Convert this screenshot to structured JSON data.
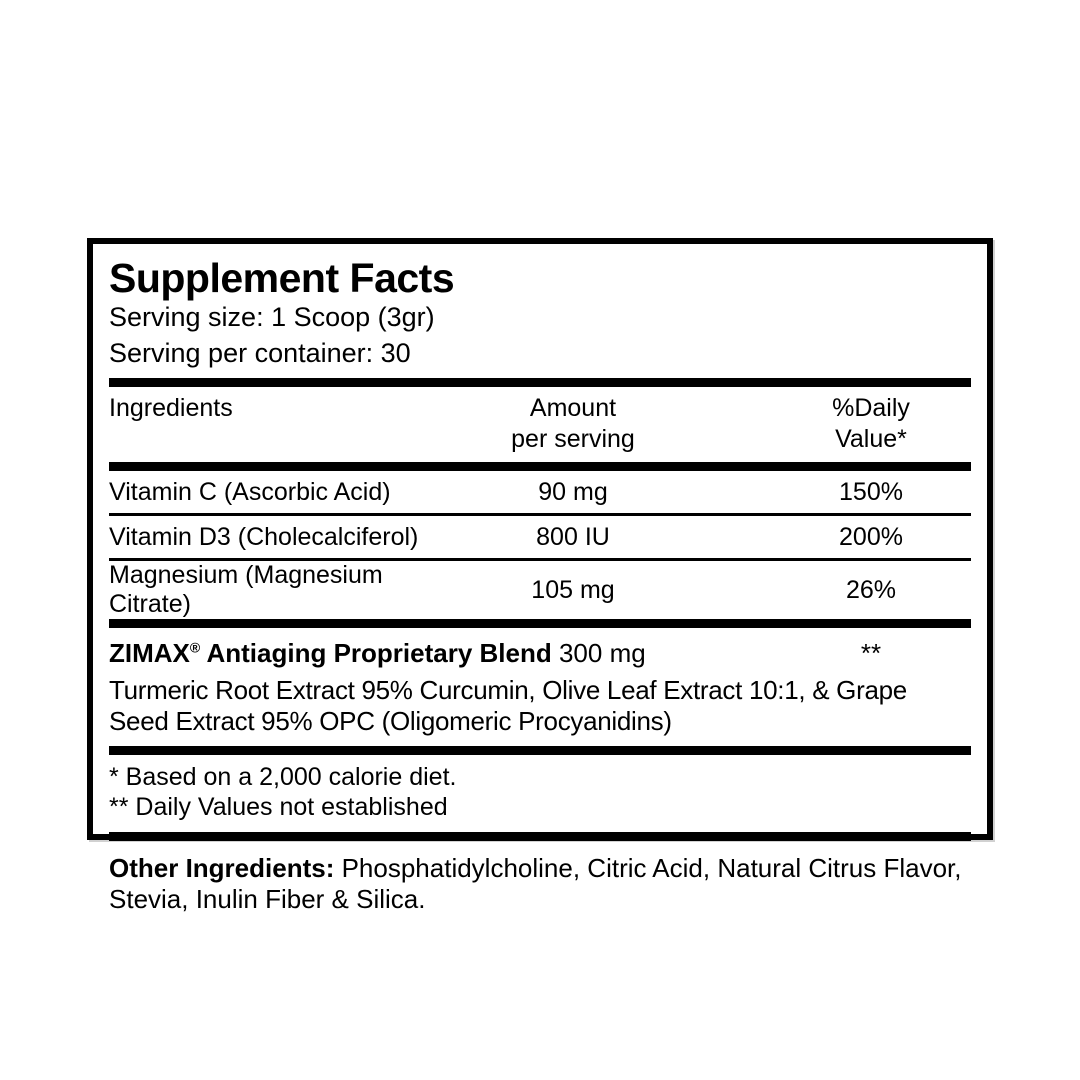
{
  "colors": {
    "ink": "#000000",
    "background": "#ffffff"
  },
  "panel": {
    "title": "Supplement Facts",
    "serving_size": "Serving size: 1 Scoop (3gr)",
    "servings_per_container": "Serving per container: 30",
    "table": {
      "header": {
        "ingredients": "Ingredients",
        "amount_line1": "Amount",
        "amount_line2": "per serving",
        "daily_value_line1": "%Daily",
        "daily_value_line2": "Value*"
      },
      "rows": [
        {
          "name": "Vitamin C (Ascorbic Acid)",
          "amount": "90 mg",
          "daily_value": "150%"
        },
        {
          "name": "Vitamin D3 (Cholecalciferol)",
          "amount": "800 IU",
          "daily_value": "200%"
        },
        {
          "name": "Magnesium (Magnesium Citrate)",
          "amount": "105 mg",
          "daily_value": "26%"
        }
      ]
    },
    "blend": {
      "brand": "ZIMAX",
      "reg_mark": "®",
      "name_rest": " Antiaging Proprietary Blend",
      "amount": " 300 mg",
      "daily_value": "**",
      "description": "Turmeric Root Extract 95% Curcumin, Olive Leaf Extract 10:1, & Grape Seed Extract 95% OPC (Oligomeric Procyanidins)"
    },
    "footnotes": [
      "* Based on a 2,000 calorie diet.",
      "** Daily Values not established"
    ],
    "other_ingredients": {
      "label": "Other Ingredients:",
      "text": " Phosphatidylcholine, Citric Acid, Natural Citrus Flavor, Stevia, Inulin Fiber & Silica."
    }
  }
}
